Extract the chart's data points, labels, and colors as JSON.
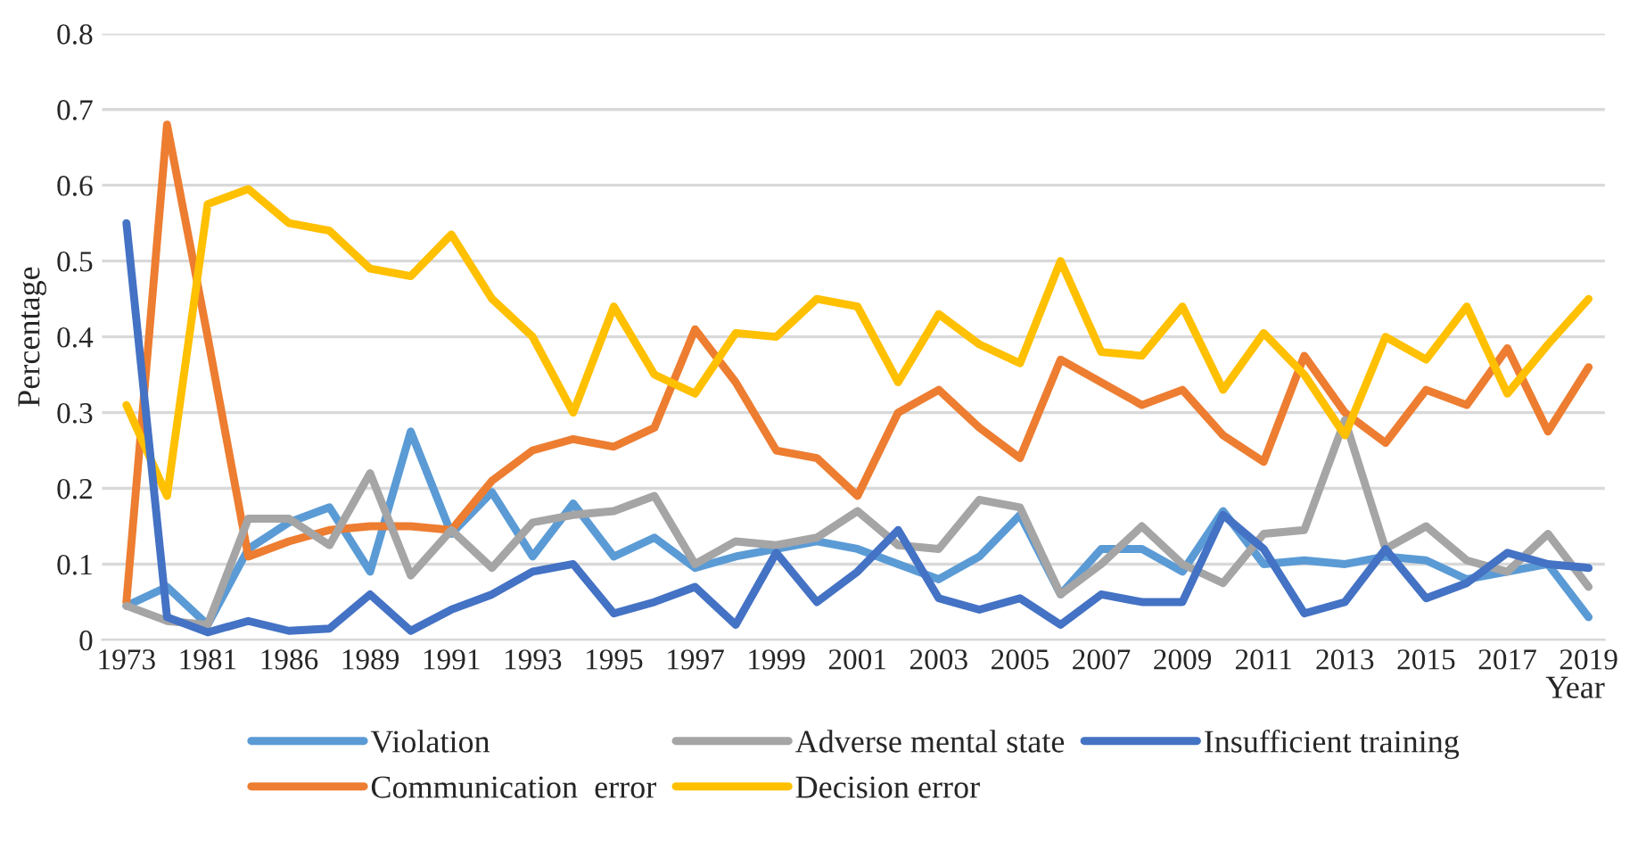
{
  "chart_data": {
    "type": "line",
    "xlabel": "Year",
    "ylabel": "Percentage",
    "categories": [
      "1973",
      null,
      "1981",
      null,
      "1986",
      null,
      "1989",
      null,
      "1991",
      null,
      "1993",
      null,
      "1995",
      null,
      "1997",
      null,
      "1999",
      null,
      "2001",
      null,
      "2003",
      null,
      "2005",
      null,
      "2007",
      null,
      "2009",
      null,
      "2011",
      null,
      "2013",
      null,
      "2015",
      null,
      "2017",
      null,
      "2019"
    ],
    "series": [
      {
        "name": "Violation",
        "color": "#5b9bd5",
        "values": [
          0.045,
          0.07,
          0.02,
          0.12,
          0.155,
          0.175,
          0.09,
          0.275,
          0.14,
          0.195,
          0.11,
          0.18,
          0.11,
          0.135,
          0.095,
          0.11,
          0.12,
          0.13,
          0.12,
          0.1,
          0.08,
          0.11,
          0.165,
          0.06,
          0.12,
          0.12,
          0.09,
          0.17,
          0.1,
          0.105,
          0.1,
          0.11,
          0.105,
          0.08,
          0.09,
          0.1,
          0.03
        ]
      },
      {
        "name": "Communication  error",
        "color": "#ed7d31",
        "values": [
          0.05,
          0.68,
          0.4,
          0.11,
          0.13,
          0.145,
          0.15,
          0.15,
          0.145,
          0.21,
          0.25,
          0.265,
          0.255,
          0.28,
          0.41,
          0.34,
          0.25,
          0.24,
          0.19,
          0.3,
          0.33,
          0.28,
          0.24,
          0.37,
          0.34,
          0.31,
          0.33,
          0.27,
          0.235,
          0.375,
          0.3,
          0.26,
          0.33,
          0.31,
          0.385,
          0.275,
          0.36
        ]
      },
      {
        "name": "Adverse mental state",
        "color": "#a5a5a5",
        "values": [
          0.045,
          0.025,
          0.02,
          0.16,
          0.16,
          0.125,
          0.22,
          0.085,
          0.145,
          0.095,
          0.155,
          0.165,
          0.17,
          0.19,
          0.1,
          0.13,
          0.125,
          0.135,
          0.17,
          0.125,
          0.12,
          0.185,
          0.175,
          0.06,
          0.1,
          0.15,
          0.1,
          0.075,
          0.14,
          0.145,
          0.29,
          0.12,
          0.15,
          0.105,
          0.09,
          0.14,
          0.07
        ]
      },
      {
        "name": "Decision error",
        "color": "#ffc000",
        "values": [
          0.31,
          0.19,
          0.575,
          0.595,
          0.55,
          0.54,
          0.49,
          0.48,
          0.535,
          0.45,
          0.4,
          0.3,
          0.44,
          0.35,
          0.325,
          0.405,
          0.4,
          0.45,
          0.44,
          0.34,
          0.43,
          0.39,
          0.365,
          0.5,
          0.38,
          0.375,
          0.44,
          0.33,
          0.405,
          0.35,
          0.27,
          0.4,
          0.37,
          0.44,
          0.325,
          0.39,
          0.45
        ]
      },
      {
        "name": "Insufficient training",
        "color": "#4472c4",
        "values": [
          0.55,
          0.03,
          0.01,
          0.025,
          0.012,
          0.015,
          0.06,
          0.012,
          0.04,
          0.06,
          0.09,
          0.1,
          0.035,
          0.05,
          0.07,
          0.02,
          0.115,
          0.05,
          0.09,
          0.145,
          0.055,
          0.04,
          0.055,
          0.02,
          0.06,
          0.05,
          0.05,
          0.165,
          0.12,
          0.035,
          0.05,
          0.12,
          0.055,
          0.075,
          0.115,
          0.1,
          0.095
        ]
      }
    ],
    "ylim": [
      0,
      0.8
    ],
    "yticks": [
      0,
      0.1,
      0.2,
      0.3,
      0.4,
      0.5,
      0.6,
      0.7,
      0.8
    ],
    "grid": "y",
    "legend": "bottom",
    "line_style": "solid",
    "marker": "none"
  }
}
